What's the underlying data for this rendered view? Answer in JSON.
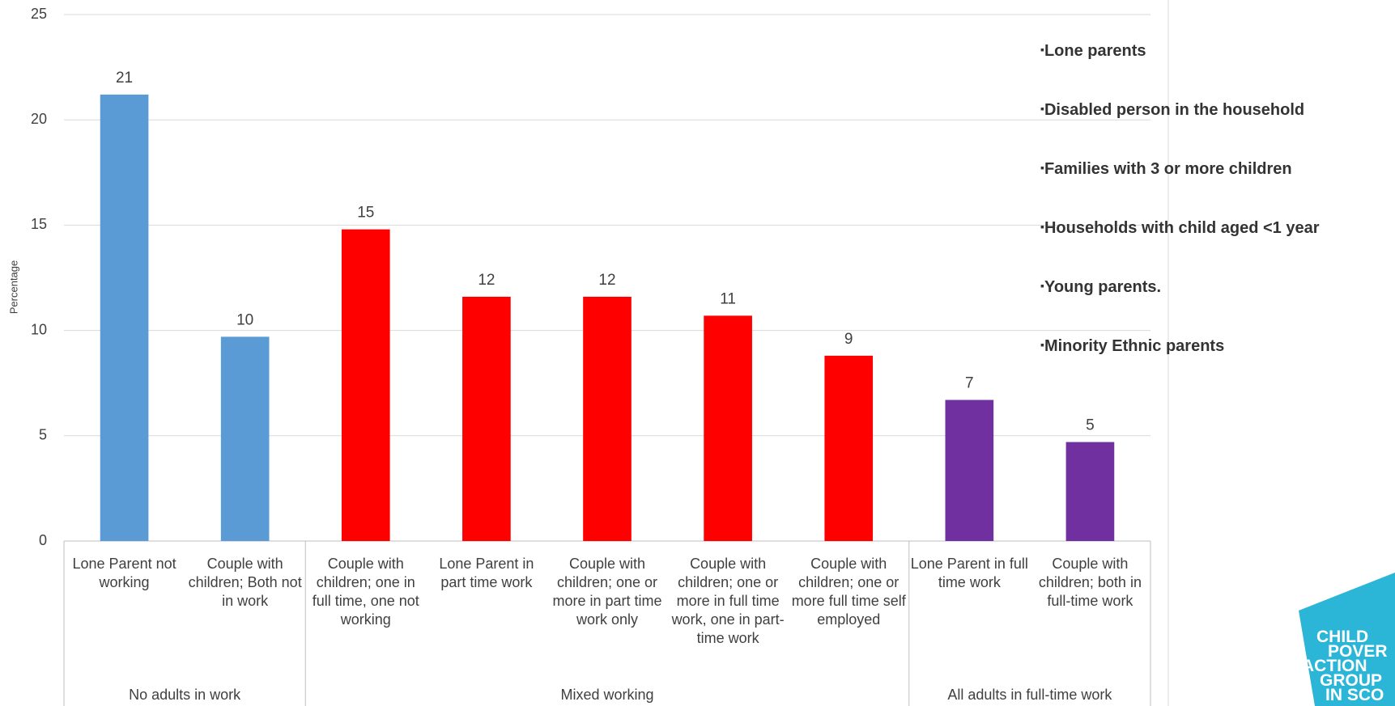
{
  "chart_data": {
    "type": "bar",
    "y_label": "Percentage",
    "groups": [
      {
        "label": "No adults in work",
        "categories": [
          "Lone Parent not working",
          "Couple with children; Both not in work"
        ]
      },
      {
        "label": "Mixed working",
        "categories": [
          "Couple with children; one in full time, one not working",
          "Lone Parent in part time work",
          "Couple with children; one or more in part time work only",
          "Couple with children; one or more in full time work, one in part-time work",
          "Couple with children; one or more full time self employed"
        ]
      },
      {
        "label": "All adults in full-time work",
        "categories": [
          "Lone Parent in full time work",
          "Couple with children; both in full-time work"
        ]
      }
    ],
    "values": [
      21.2,
      9.7,
      14.8,
      11.6,
      11.6,
      10.7,
      8.8,
      6.7,
      4.7
    ],
    "value_labels": [
      "21",
      "10",
      "15",
      "12",
      "12",
      "11",
      "9",
      "7",
      "5"
    ],
    "colors": [
      "#5b9bd5",
      "#5b9bd5",
      "#ff0000",
      "#ff0000",
      "#ff0000",
      "#ff0000",
      "#ff0000",
      "#7030a0",
      "#7030a0"
    ],
    "ylim": [
      0,
      25
    ],
    "yticks": [
      0,
      5,
      10,
      15,
      20,
      25
    ],
    "grid": true
  },
  "notes": [
    "Lone parents",
    "Disabled person in the household",
    "Families with 3 or more children",
    "Households with child aged <1 year",
    "Young parents.",
    "Minority Ethnic parents"
  ],
  "logo": [
    "CHILD",
    "POVER",
    "ACTION",
    "GROUP",
    "IN SCO"
  ]
}
